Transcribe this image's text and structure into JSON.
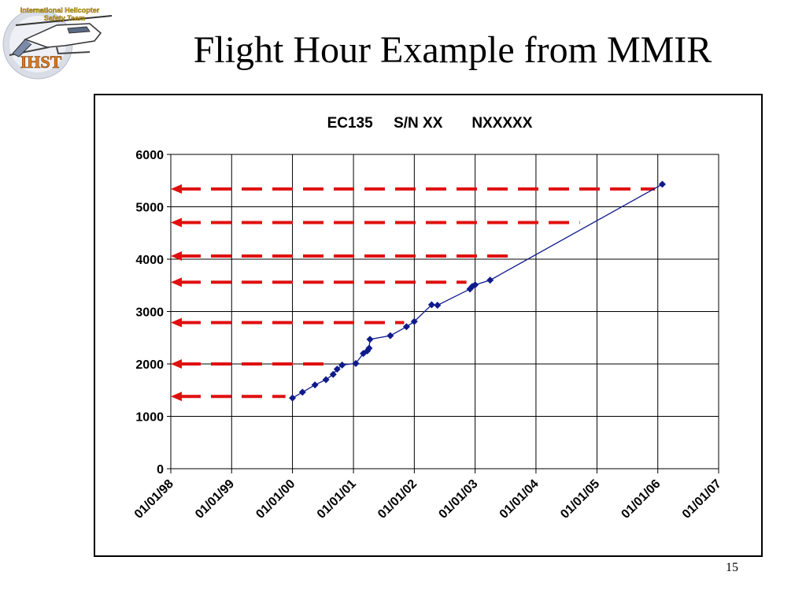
{
  "slide": {
    "title": "Flight Hour Example from MMIR",
    "page_number": "15",
    "logo": {
      "text_top": "International Helicopter",
      "text_mid": "Safety Team",
      "text_acronym": "IHST"
    }
  },
  "colors": {
    "series": "#0f1a8c",
    "arrows": "#e01010",
    "grid": "#000000"
  },
  "chart_data": {
    "type": "line",
    "title": "EC135     S/N XX       NXXXXX",
    "xlabel": "",
    "ylabel": "",
    "ylim": [
      0,
      6000
    ],
    "yticks": [
      0,
      1000,
      2000,
      3000,
      4000,
      5000,
      6000
    ],
    "xlim": [
      "1998-01-01",
      "2007-01-01"
    ],
    "xticks": [
      "1998-01-01",
      "1999-01-01",
      "2000-01-01",
      "2001-01-01",
      "2002-01-01",
      "2003-01-01",
      "2004-01-01",
      "2005-01-01",
      "2006-01-01",
      "2007-01-01"
    ],
    "xtick_labels": [
      "01/01/98",
      "01/01/99",
      "01/01/00",
      "01/01/01",
      "01/01/02",
      "01/01/03",
      "01/01/04",
      "01/01/05",
      "01/01/06",
      "01/01/07"
    ],
    "grid": true,
    "series": [
      {
        "x": [
          "2000-01-01",
          "2000-03-01",
          "2000-05-15",
          "2000-07-20",
          "2000-09-01",
          "2000-09-25",
          "2000-10-25",
          "2001-01-15",
          "2001-03-01",
          "2001-03-25",
          "2001-04-05",
          "2001-04-10",
          "2001-08-10",
          "2001-11-15",
          "2002-01-01",
          "2002-04-15",
          "2002-05-20",
          "2002-12-01",
          "2002-12-15",
          "2003-01-01",
          "2003-04-01",
          "2006-01-28"
        ],
        "y": [
          1350,
          1460,
          1600,
          1700,
          1800,
          1900,
          1980,
          2010,
          2200,
          2250,
          2300,
          2470,
          2540,
          2710,
          2810,
          3130,
          3120,
          3430,
          3480,
          3510,
          3600,
          5430
        ]
      }
    ],
    "reference_lines": [
      {
        "y": 1380,
        "x_end": "1999-11-20"
      },
      {
        "y": 2000,
        "x_end": "2000-07-15"
      },
      {
        "y": 2790,
        "x_end": "2001-11-01"
      },
      {
        "y": 3560,
        "x_end": "2002-11-10"
      },
      {
        "y": 4060,
        "x_end": "2003-09-15"
      },
      {
        "y": 4700,
        "x_end": "2004-09-20"
      },
      {
        "y": 5340,
        "x_end": "2005-12-15"
      }
    ]
  }
}
